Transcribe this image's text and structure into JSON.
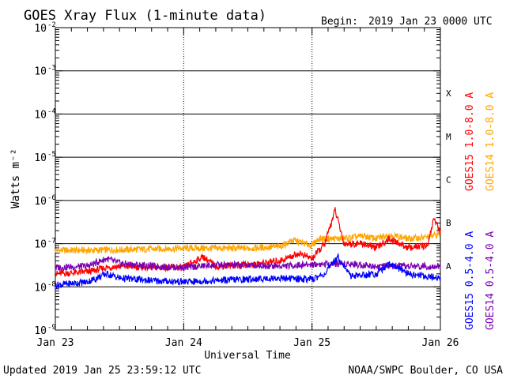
{
  "header": {
    "title": "GOES Xray Flux (1-minute data)",
    "begin_label": "Begin:",
    "begin_value": "2019 Jan 23 0000 UTC"
  },
  "footer": {
    "updated": "Updated 2019 Jan 25 23:59:12 UTC",
    "credit": "NOAA/SWPC Boulder, CO USA"
  },
  "chart_data": {
    "type": "line",
    "title": "GOES Xray Flux (1-minute data)",
    "xlabel": "Universal Time",
    "ylabel": "Watts m⁻²",
    "yscale": "log",
    "ylim": [
      1e-09,
      0.01
    ],
    "xlim_days": [
      0,
      3
    ],
    "x_ticks": [
      "Jan 23",
      "Jan 24",
      "Jan 25",
      "Jan 26"
    ],
    "y_ticks": [
      {
        "base": "10",
        "exp": "-2"
      },
      {
        "base": "10",
        "exp": "-3"
      },
      {
        "base": "10",
        "exp": "-4"
      },
      {
        "base": "10",
        "exp": "-5"
      },
      {
        "base": "10",
        "exp": "-6"
      },
      {
        "base": "10",
        "exp": "-7"
      },
      {
        "base": "10",
        "exp": "-8"
      },
      {
        "base": "10",
        "exp": "-9"
      }
    ],
    "flare_classes": [
      "X",
      "M",
      "C",
      "B",
      "A"
    ],
    "legend": [
      {
        "label": "GOES15 1.0-8.0 A",
        "color": "#ff0000"
      },
      {
        "label": "GOES14 1.0-8.0 A",
        "color": "#ffa500"
      },
      {
        "label": "GOES15 0.5-4.0 A",
        "color": "#0000ff"
      },
      {
        "label": "GOES14 0.5-4.0 A",
        "color": "#7b00b4"
      }
    ],
    "series": [
      {
        "name": "GOES14 1.0-8.0 A",
        "color": "#ffa500",
        "points": [
          [
            0,
            7e-08
          ],
          [
            0.25,
            7e-08
          ],
          [
            0.5,
            7.2e-08
          ],
          [
            0.75,
            7.5e-08
          ],
          [
            1.0,
            7.8e-08
          ],
          [
            1.25,
            7.8e-08
          ],
          [
            1.5,
            7.8e-08
          ],
          [
            1.75,
            8.5e-08
          ],
          [
            1.85,
            1.2e-07
          ],
          [
            2.0,
            9e-08
          ],
          [
            2.05,
            1.3e-07
          ],
          [
            2.25,
            1.3e-07
          ],
          [
            2.4,
            1.5e-07
          ],
          [
            2.5,
            1.3e-07
          ],
          [
            2.6,
            1.6e-07
          ],
          [
            2.75,
            1.3e-07
          ],
          [
            2.9,
            1.4e-07
          ],
          [
            3.0,
            1.7e-07
          ]
        ]
      },
      {
        "name": "GOES15 1.0-8.0 A",
        "color": "#ff0000",
        "points": [
          [
            0,
            2e-08
          ],
          [
            0.25,
            2.2e-08
          ],
          [
            0.4,
            2.8e-08
          ],
          [
            0.5,
            3e-08
          ],
          [
            0.75,
            2.8e-08
          ],
          [
            1.0,
            2.8e-08
          ],
          [
            1.15,
            5e-08
          ],
          [
            1.25,
            3e-08
          ],
          [
            1.5,
            3.2e-08
          ],
          [
            1.75,
            4e-08
          ],
          [
            1.9,
            6e-08
          ],
          [
            2.0,
            4.5e-08
          ],
          [
            2.1,
            1e-07
          ],
          [
            2.18,
            6e-07
          ],
          [
            2.25,
            1e-07
          ],
          [
            2.4,
            1e-07
          ],
          [
            2.5,
            8e-08
          ],
          [
            2.6,
            1.3e-07
          ],
          [
            2.75,
            8e-08
          ],
          [
            2.9,
            9e-08
          ],
          [
            2.95,
            4e-07
          ],
          [
            3.0,
            1.8e-07
          ]
        ]
      },
      {
        "name": "GOES14 0.5-4.0 A",
        "color": "#7b00b4",
        "points": [
          [
            0,
            2.8e-08
          ],
          [
            0.25,
            3e-08
          ],
          [
            0.4,
            4.5e-08
          ],
          [
            0.5,
            3.5e-08
          ],
          [
            0.75,
            3e-08
          ],
          [
            1.0,
            2.8e-08
          ],
          [
            1.25,
            3.2e-08
          ],
          [
            1.5,
            3.2e-08
          ],
          [
            1.75,
            3e-08
          ],
          [
            2.0,
            3.3e-08
          ],
          [
            2.25,
            3.5e-08
          ],
          [
            2.5,
            3e-08
          ],
          [
            2.75,
            3e-08
          ],
          [
            3.0,
            3e-08
          ]
        ]
      },
      {
        "name": "GOES15 0.5-4.0 A",
        "color": "#0000ff",
        "points": [
          [
            0,
            1.1e-08
          ],
          [
            0.25,
            1.3e-08
          ],
          [
            0.4,
            2e-08
          ],
          [
            0.5,
            1.6e-08
          ],
          [
            0.75,
            1.4e-08
          ],
          [
            1.0,
            1.3e-08
          ],
          [
            1.25,
            1.4e-08
          ],
          [
            1.5,
            1.5e-08
          ],
          [
            1.75,
            1.6e-08
          ],
          [
            2.0,
            1.5e-08
          ],
          [
            2.1,
            2e-08
          ],
          [
            2.2,
            5e-08
          ],
          [
            2.3,
            1.8e-08
          ],
          [
            2.5,
            2e-08
          ],
          [
            2.6,
            3.5e-08
          ],
          [
            2.75,
            2e-08
          ],
          [
            3.0,
            1.6e-08
          ]
        ]
      }
    ]
  }
}
